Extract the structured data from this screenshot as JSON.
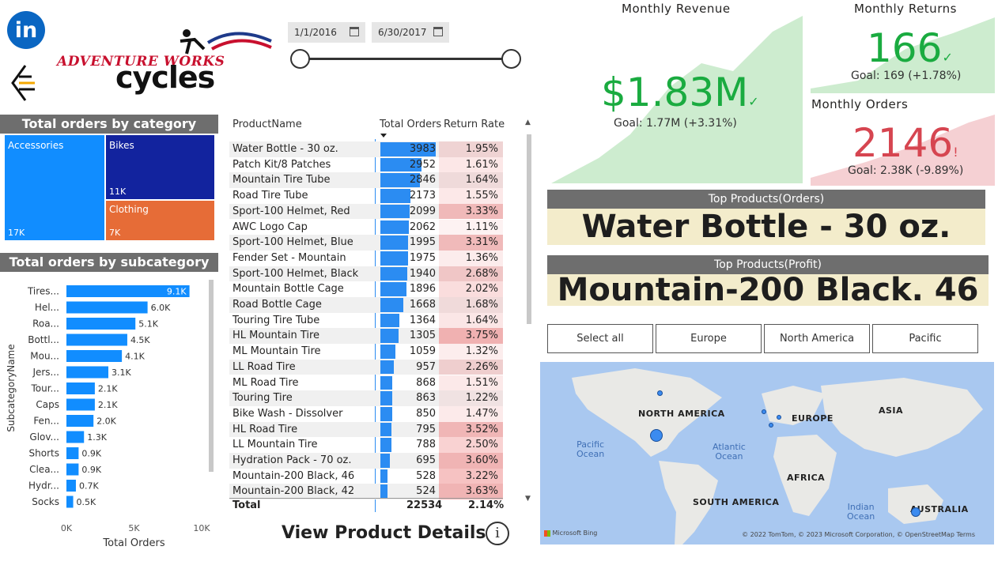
{
  "brand": {
    "linkedin": "in",
    "line1": "ADVENTURE WORKS",
    "line2": "cycles"
  },
  "dates": {
    "start": "1/1/2016",
    "end": "6/30/2017"
  },
  "category": {
    "title": "Total orders by category",
    "items": [
      {
        "name": "Accessories",
        "value": "17K"
      },
      {
        "name": "Bikes",
        "value": "11K"
      },
      {
        "name": "Clothing",
        "value": "7K"
      }
    ],
    "colors": {
      "Accessories": "#118dff",
      "Bikes": "#12239e",
      "Clothing": "#e66c37"
    }
  },
  "chart_data": {
    "type": "bar",
    "orientation": "horizontal",
    "title": "Total orders by subcategory",
    "xlabel": "Total Orders",
    "ylabel": "SubcategoryName",
    "categories": [
      "Tires...",
      "Hel...",
      "Roa...",
      "Bottl...",
      "Mou...",
      "Jers...",
      "Tour...",
      "Caps",
      "Fen...",
      "Glov...",
      "Shorts",
      "Clea...",
      "Hydr...",
      "Socks"
    ],
    "values": [
      9.1,
      6.0,
      5.1,
      4.5,
      4.1,
      3.1,
      2.1,
      2.1,
      2.0,
      1.3,
      0.9,
      0.9,
      0.7,
      0.5
    ],
    "labels": [
      "9.1K",
      "6.0K",
      "5.1K",
      "4.5K",
      "4.1K",
      "3.1K",
      "2.1K",
      "2.1K",
      "2.0K",
      "1.3K",
      "0.9K",
      "0.9K",
      "0.7K",
      "0.5K"
    ],
    "xticks": [
      "0K",
      "5K",
      "10K"
    ],
    "xlim": [
      0,
      10
    ],
    "color": "#118dff"
  },
  "table": {
    "headers": {
      "name": "ProductName",
      "orders": "Total Orders",
      "rate": "Return Rate"
    },
    "max_orders": 3983,
    "rows": [
      {
        "name": "Water Bottle - 30 oz.",
        "orders": 3983,
        "rate": "1.95%",
        "rate_num": 1.95
      },
      {
        "name": "Patch Kit/8 Patches",
        "orders": 2952,
        "rate": "1.61%",
        "rate_num": 1.61
      },
      {
        "name": "Mountain Tire Tube",
        "orders": 2846,
        "rate": "1.64%",
        "rate_num": 1.64
      },
      {
        "name": "Road Tire Tube",
        "orders": 2173,
        "rate": "1.55%",
        "rate_num": 1.55
      },
      {
        "name": "Sport-100 Helmet, Red",
        "orders": 2099,
        "rate": "3.33%",
        "rate_num": 3.33
      },
      {
        "name": "AWC Logo Cap",
        "orders": 2062,
        "rate": "1.11%",
        "rate_num": 1.11
      },
      {
        "name": "Sport-100 Helmet, Blue",
        "orders": 1995,
        "rate": "3.31%",
        "rate_num": 3.31
      },
      {
        "name": "Fender Set - Mountain",
        "orders": 1975,
        "rate": "1.36%",
        "rate_num": 1.36
      },
      {
        "name": "Sport-100 Helmet, Black",
        "orders": 1940,
        "rate": "2.68%",
        "rate_num": 2.68
      },
      {
        "name": "Mountain Bottle Cage",
        "orders": 1896,
        "rate": "2.02%",
        "rate_num": 2.02
      },
      {
        "name": "Road Bottle Cage",
        "orders": 1668,
        "rate": "1.68%",
        "rate_num": 1.68
      },
      {
        "name": "Touring Tire Tube",
        "orders": 1364,
        "rate": "1.64%",
        "rate_num": 1.64
      },
      {
        "name": "HL Mountain Tire",
        "orders": 1305,
        "rate": "3.75%",
        "rate_num": 3.75
      },
      {
        "name": "ML Mountain Tire",
        "orders": 1059,
        "rate": "1.32%",
        "rate_num": 1.32
      },
      {
        "name": "LL Road Tire",
        "orders": 957,
        "rate": "2.26%",
        "rate_num": 2.26
      },
      {
        "name": "ML Road Tire",
        "orders": 868,
        "rate": "1.51%",
        "rate_num": 1.51
      },
      {
        "name": "Touring Tire",
        "orders": 863,
        "rate": "1.22%",
        "rate_num": 1.22
      },
      {
        "name": "Bike Wash - Dissolver",
        "orders": 850,
        "rate": "1.47%",
        "rate_num": 1.47
      },
      {
        "name": "HL Road Tire",
        "orders": 795,
        "rate": "3.52%",
        "rate_num": 3.52
      },
      {
        "name": "LL Mountain Tire",
        "orders": 788,
        "rate": "2.50%",
        "rate_num": 2.5
      },
      {
        "name": "Hydration Pack - 70 oz.",
        "orders": 695,
        "rate": "3.60%",
        "rate_num": 3.6
      },
      {
        "name": "Mountain-200 Black, 46",
        "orders": 528,
        "rate": "3.22%",
        "rate_num": 3.22
      },
      {
        "name": "Mountain-200 Black, 42",
        "orders": 524,
        "rate": "3.63%",
        "rate_num": 3.63
      }
    ],
    "total": {
      "label": "Total",
      "orders": "22534",
      "rate": "2.14%"
    },
    "bar_color": "#2b8cf2",
    "rate_color": "#f8c6c6"
  },
  "kpis": {
    "revenue": {
      "title": "Monthly Revenue",
      "value": "$1.83M",
      "goal": "Goal: 1.77M (+3.31%)",
      "status_icon": "✓",
      "color": "#1aab40"
    },
    "returns": {
      "title": "Monthly Returns",
      "value": "166",
      "goal": "Goal: 169 (+1.78%)",
      "status_icon": "✓",
      "color": "#1aab40"
    },
    "orders": {
      "title": "Monthly Orders",
      "value": "2146",
      "goal": "Goal: 2.38K (-9.89%)",
      "status_icon": "!",
      "color": "#d64550"
    }
  },
  "top_products": {
    "orders": {
      "title": "Top Products(Orders)",
      "value": "Water Bottle - 30 oz."
    },
    "profit": {
      "title": "Top Products(Profit)",
      "value": "Mountain-200 Black. 46"
    }
  },
  "regions": [
    "Select all",
    "Europe",
    "North America",
    "Pacific"
  ],
  "map": {
    "continents": [
      "NORTH AMERICA",
      "EUROPE",
      "ASIA",
      "AFRICA",
      "SOUTH AMERICA",
      "AUSTRALIA"
    ],
    "oceans": {
      "pacific": "Pacific\nOcean",
      "atlantic": "Atlantic\nOcean",
      "indian": "Indian\nOcean"
    },
    "provider": "Microsoft Bing",
    "copyright": "© 2022 TomTom, © 2023 Microsoft Corporation, © OpenStreetMap  Terms"
  },
  "footer": {
    "details": "View Product Details",
    "info_icon": "i"
  }
}
